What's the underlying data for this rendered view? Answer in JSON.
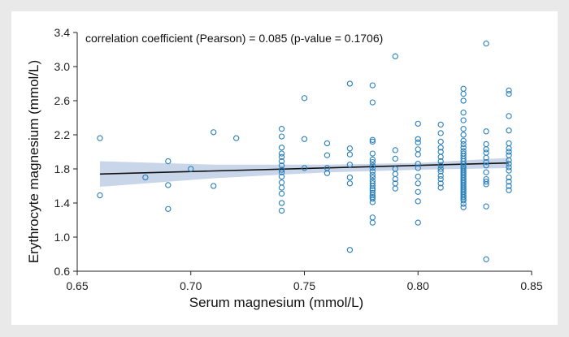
{
  "chart_data": {
    "type": "scatter",
    "title": "",
    "annotation": "correlation coefficient (Pearson) = 0.085 (p-value = 0.1706)",
    "xlabel": "Serum magnesium (mmol/L)",
    "ylabel": "Erythrocyte magnesium (mmol/L)",
    "xlim": [
      0.65,
      0.85
    ],
    "ylim": [
      0.6,
      3.4
    ],
    "x_ticks": [
      0.65,
      0.7,
      0.75,
      0.8,
      0.85
    ],
    "x_tick_labels": [
      "0.65",
      "0.70",
      "0.75",
      "0.80",
      "0.85"
    ],
    "y_ticks": [
      0.6,
      1.0,
      1.4,
      1.8,
      2.2,
      2.6,
      3.0,
      3.4
    ],
    "y_tick_labels": [
      "0.6",
      "1.0",
      "1.4",
      "1.8",
      "2.2",
      "2.6",
      "3.0",
      "3.4"
    ],
    "grid": false,
    "colors": {
      "points": "#2a7fb8",
      "fit_line": "#111111",
      "confidence_band": "#c9d6ea"
    },
    "fit_line": {
      "x": [
        0.66,
        0.84
      ],
      "y": [
        1.74,
        1.87
      ]
    },
    "confidence_band": {
      "x": [
        0.66,
        0.71,
        0.76,
        0.8,
        0.84
      ],
      "lower": [
        1.59,
        1.69,
        1.76,
        1.79,
        1.81
      ],
      "upper": [
        1.89,
        1.85,
        1.85,
        1.87,
        1.93
      ]
    },
    "series": [
      {
        "x": [
          0.66,
          0.66,
          0.68,
          0.69,
          0.69,
          0.69,
          0.7,
          0.71,
          0.71,
          0.72,
          0.74,
          0.74,
          0.74,
          0.74,
          0.74,
          0.74,
          0.74,
          0.74,
          0.74,
          0.74,
          0.74,
          0.74,
          0.74,
          0.74,
          0.74,
          0.75,
          0.75,
          0.75,
          0.76,
          0.76,
          0.76,
          0.76,
          0.77,
          0.77,
          0.77,
          0.77,
          0.77,
          0.77,
          0.77,
          0.78,
          0.78,
          0.78,
          0.78,
          0.78,
          0.78,
          0.78,
          0.78,
          0.78,
          0.78,
          0.78,
          0.78,
          0.78,
          0.78,
          0.78,
          0.78,
          0.78,
          0.78,
          0.78,
          0.78,
          0.78,
          0.78,
          0.78,
          0.78,
          0.79,
          0.79,
          0.79,
          0.79,
          0.79,
          0.79,
          0.79,
          0.79,
          0.8,
          0.8,
          0.8,
          0.8,
          0.8,
          0.8,
          0.8,
          0.8,
          0.8,
          0.8,
          0.8,
          0.8,
          0.81,
          0.81,
          0.81,
          0.81,
          0.81,
          0.81,
          0.81,
          0.81,
          0.81,
          0.81,
          0.81,
          0.81,
          0.81,
          0.81,
          0.82,
          0.82,
          0.82,
          0.82,
          0.82,
          0.82,
          0.82,
          0.82,
          0.82,
          0.82,
          0.82,
          0.82,
          0.82,
          0.82,
          0.82,
          0.82,
          0.82,
          0.82,
          0.82,
          0.82,
          0.82,
          0.82,
          0.82,
          0.82,
          0.82,
          0.82,
          0.82,
          0.82,
          0.82,
          0.82,
          0.82,
          0.82,
          0.82,
          0.82,
          0.82,
          0.82,
          0.82,
          0.82,
          0.82,
          0.83,
          0.83,
          0.83,
          0.83,
          0.83,
          0.83,
          0.83,
          0.83,
          0.83,
          0.83,
          0.83,
          0.83,
          0.83,
          0.83,
          0.84,
          0.84,
          0.84,
          0.84,
          0.84,
          0.84,
          0.84,
          0.84,
          0.84,
          0.84,
          0.84,
          0.84,
          0.84,
          0.84,
          0.84,
          0.84
        ],
        "y": [
          2.16,
          1.49,
          1.7,
          1.89,
          1.61,
          1.33,
          1.8,
          2.23,
          1.6,
          2.16,
          2.27,
          2.18,
          2.05,
          1.98,
          1.94,
          1.89,
          1.84,
          1.79,
          1.76,
          1.71,
          1.64,
          1.58,
          1.51,
          1.4,
          1.31,
          2.63,
          2.15,
          1.81,
          2.1,
          1.96,
          1.81,
          1.75,
          2.8,
          2.04,
          1.97,
          1.85,
          1.7,
          1.63,
          0.85,
          2.78,
          2.58,
          2.14,
          2.12,
          1.98,
          1.91,
          1.88,
          1.84,
          1.81,
          1.77,
          1.73,
          1.7,
          1.66,
          1.63,
          1.6,
          1.57,
          1.55,
          1.52,
          1.49,
          1.47,
          1.45,
          1.41,
          1.23,
          1.17,
          3.12,
          2.02,
          1.92,
          1.8,
          1.74,
          1.68,
          1.63,
          1.57,
          2.33,
          2.15,
          2.11,
          2.03,
          1.97,
          1.86,
          1.81,
          1.71,
          1.63,
          1.53,
          1.42,
          1.17,
          2.32,
          2.22,
          2.12,
          2.05,
          2.0,
          1.94,
          1.89,
          1.84,
          1.8,
          1.77,
          1.72,
          1.68,
          1.63,
          1.58,
          2.74,
          2.68,
          2.6,
          2.46,
          2.37,
          2.27,
          2.2,
          2.13,
          2.09,
          2.05,
          2.01,
          1.98,
          1.95,
          1.92,
          1.89,
          1.86,
          1.83,
          1.81,
          1.79,
          1.77,
          1.75,
          1.73,
          1.71,
          1.69,
          1.67,
          1.65,
          1.63,
          1.61,
          1.59,
          1.57,
          1.55,
          1.53,
          1.51,
          1.49,
          1.47,
          1.45,
          1.43,
          1.39,
          1.35,
          3.27,
          2.24,
          2.09,
          2.03,
          1.99,
          1.93,
          1.88,
          1.84,
          1.76,
          1.68,
          1.65,
          1.62,
          1.36,
          0.74,
          2.72,
          2.68,
          2.42,
          2.25,
          2.1,
          2.04,
          2.0,
          1.96,
          1.9,
          1.86,
          1.82,
          1.78,
          1.7,
          1.65,
          1.6,
          1.55
        ]
      }
    ]
  }
}
